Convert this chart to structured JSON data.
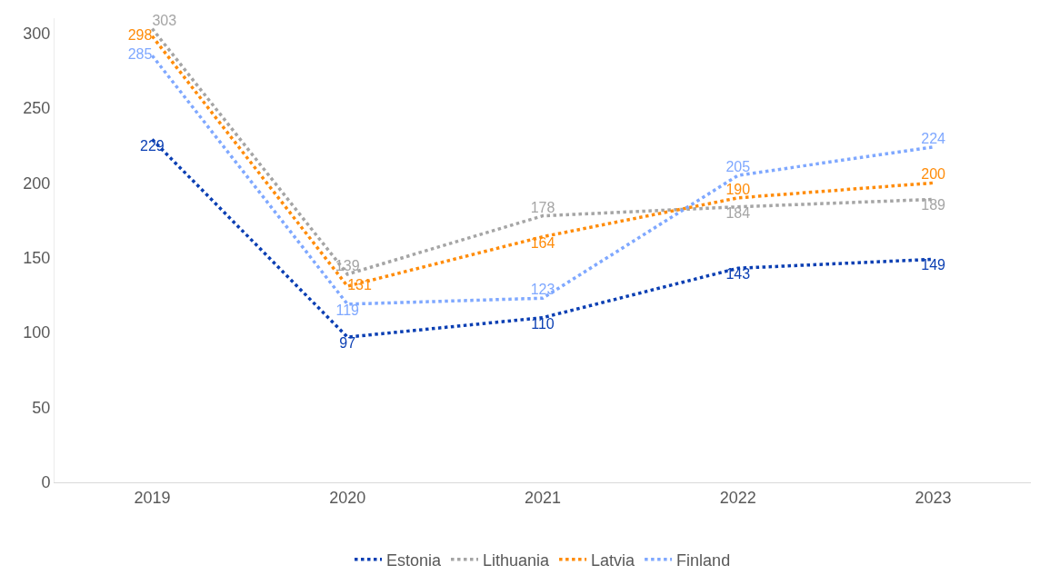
{
  "chart_data": {
    "type": "line",
    "categories": [
      "2019",
      "2020",
      "2021",
      "2022",
      "2023"
    ],
    "series": [
      {
        "name": "Estonia",
        "color": "#0b3fb3",
        "values": [
          229,
          97,
          110,
          143,
          149
        ]
      },
      {
        "name": "Lithuania",
        "color": "#a5a5a5",
        "values": [
          303,
          139,
          178,
          184,
          189
        ]
      },
      {
        "name": "Latvia",
        "color": "#ff8c0a",
        "values": [
          298,
          131,
          164,
          190,
          200
        ]
      },
      {
        "name": "Finland",
        "color": "#7fa8ff",
        "values": [
          285,
          119,
          123,
          205,
          224
        ]
      }
    ],
    "ylim": [
      0,
      310
    ],
    "yticks": [
      0,
      50,
      100,
      150,
      200,
      250,
      300
    ],
    "legend": "bottom",
    "line_style": "dotted",
    "data_labels": true
  }
}
